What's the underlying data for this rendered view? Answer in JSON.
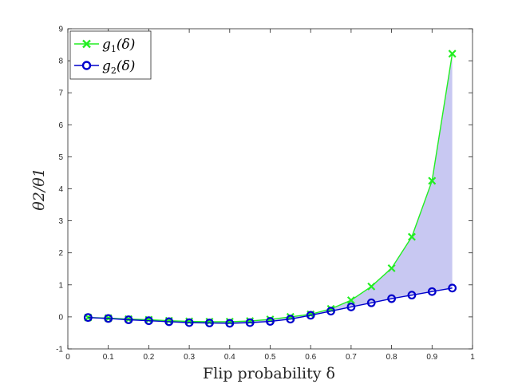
{
  "chart_data": {
    "type": "line",
    "xlabel": "Flip probability δ",
    "ylabel": "θ2/θ1",
    "xlim": [
      0,
      1
    ],
    "ylim": [
      -1,
      9
    ],
    "x_ticks": [
      "0",
      "0.1",
      "0.2",
      "0.3",
      "0.4",
      "0.5",
      "0.6",
      "0.7",
      "0.8",
      "0.9",
      "1"
    ],
    "y_ticks": [
      "-1",
      "0",
      "1",
      "2",
      "3",
      "4",
      "5",
      "6",
      "7",
      "8",
      "9"
    ],
    "grid": false,
    "legend_position": "top-left",
    "fill_between": {
      "series": [
        0,
        1
      ],
      "color": "#c8c8f2"
    },
    "x": [
      0.05,
      0.1,
      0.15,
      0.2,
      0.25,
      0.3,
      0.35,
      0.4,
      0.45,
      0.5,
      0.55,
      0.6,
      0.65,
      0.7,
      0.75,
      0.8,
      0.85,
      0.9,
      0.95
    ],
    "series": [
      {
        "name": "g1(δ)",
        "legend_main": "g",
        "legend_sub": "1",
        "legend_arg": "(δ)",
        "marker": "x",
        "color": "#22ee22",
        "values": [
          -0.02,
          -0.04,
          -0.07,
          -0.09,
          -0.12,
          -0.14,
          -0.15,
          -0.15,
          -0.13,
          -0.08,
          0.0,
          0.08,
          0.25,
          0.52,
          0.95,
          1.52,
          2.5,
          4.25,
          8.22
        ]
      },
      {
        "name": "g2(δ)",
        "legend_main": "g",
        "legend_sub": "2",
        "legend_arg": "(δ)",
        "marker": "o",
        "color": "#0000cc",
        "values": [
          -0.02,
          -0.05,
          -0.09,
          -0.12,
          -0.15,
          -0.18,
          -0.19,
          -0.2,
          -0.18,
          -0.14,
          -0.07,
          0.05,
          0.18,
          0.31,
          0.44,
          0.57,
          0.68,
          0.79,
          0.9
        ]
      }
    ]
  }
}
